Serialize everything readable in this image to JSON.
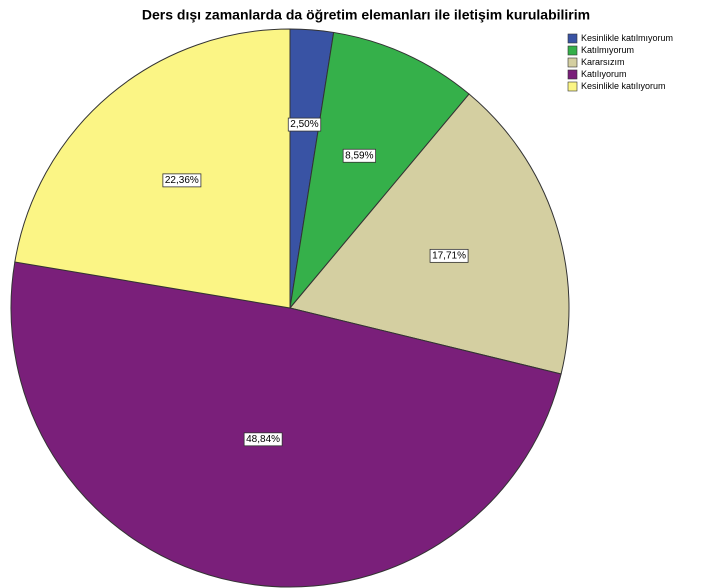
{
  "chart_data": {
    "type": "pie",
    "title": "Ders dışı zamanlarda da öğretim elemanları ile iletişim kurulabilirim",
    "categories": [
      "Kesinlikle katılmıyorum",
      "Katılmıyorum",
      "Kararsızım",
      "Katılıyorum",
      "Kesinlikle katılıyorum"
    ],
    "values": [
      2.5,
      8.59,
      17.71,
      48.84,
      22.36
    ],
    "value_labels": [
      "2,50%",
      "8,59%",
      "17,71%",
      "48,84%",
      "22,36%"
    ],
    "colors": [
      "#3953a4",
      "#35b04a",
      "#d4cfa1",
      "#7a1f7a",
      "#fbf585"
    ],
    "legend": "top-right"
  }
}
